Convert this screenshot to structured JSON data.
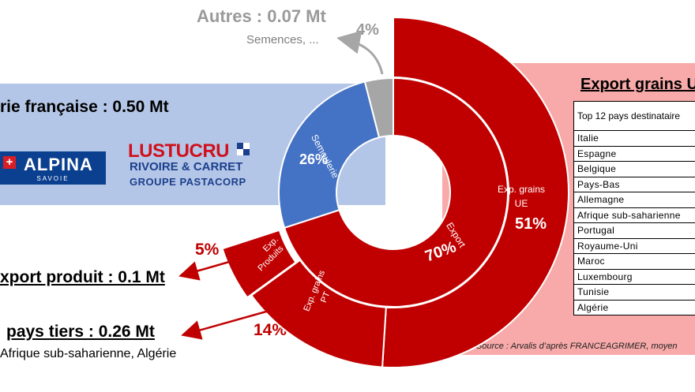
{
  "header": {
    "autres_title": "Autres : 0.07 Mt",
    "autres_sub": "Semences, ...",
    "autres_pct": "4%"
  },
  "left": {
    "semoulerie_title": "rie française : 0.50 Mt",
    "export_produit_pct": "5%",
    "export_produit_title": "xport produit : 0.1 Mt",
    "pays_tiers_title": "pays tiers : 0.26 Mt",
    "pays_tiers_pct": "14%",
    "pays_tiers_sub": "Afrique sub-saharienne, Algérie"
  },
  "logos": {
    "alpina_cross": "+",
    "alpina_name": "ALPINA",
    "alpina_sub": "SAVOIE",
    "lustucru_l1": "LUSTUCRU",
    "lustucru_l2": "RIVOIRE & CARRET",
    "lustucru_l3": "GROUPE PASTACORP",
    "flag_colors": [
      "#1b3f8b",
      "#ffffff",
      "#ffffff",
      "#1b3f8b"
    ]
  },
  "right": {
    "title": "Export grains U",
    "table_header": "Top 12 pays destinataire",
    "countries": [
      "Italie",
      "Espagne",
      "Belgique",
      "Pays-Bas",
      "Allemagne",
      "Afrique sub-saharienne",
      "Portugal",
      "Royaume-Uni",
      "Maroc",
      "Luxembourg",
      "Tunisie",
      "Algérie"
    ],
    "source": "Source : Arvalis d’après FRANCEAGRIMER, moyen"
  },
  "colors": {
    "red": "#c00000",
    "blue": "#4472c4",
    "gray": "#a6a6a6",
    "band_blue": "#b4c6e7",
    "band_pink": "#f7aaa9"
  },
  "chart_data": {
    "type": "pie",
    "inner_ring": [
      {
        "label": "Semoulerie",
        "value": 26,
        "color": "#4472c4"
      },
      {
        "label": "Export",
        "value": 70,
        "color": "#c00000"
      },
      {
        "label": "",
        "value": 4,
        "color": "#a6a6a6"
      }
    ],
    "outer_ring": [
      {
        "label": "Exp. grains UE",
        "value": 51,
        "color": "#c00000"
      },
      {
        "label": "Exp. grains PT",
        "value": 14,
        "color": "#c00000"
      },
      {
        "label": "Exp. Produits",
        "value": 5,
        "color": "#c00000"
      }
    ],
    "labels": {
      "semoulerie": "Semoulerie",
      "semoulerie_pct": "26%",
      "export": "Export",
      "export_pct": "70%",
      "ue": "Exp. grains UE",
      "ue_pct": "51%",
      "pt": "Exp. grains PT",
      "produits": "Exp. Produits"
    }
  }
}
